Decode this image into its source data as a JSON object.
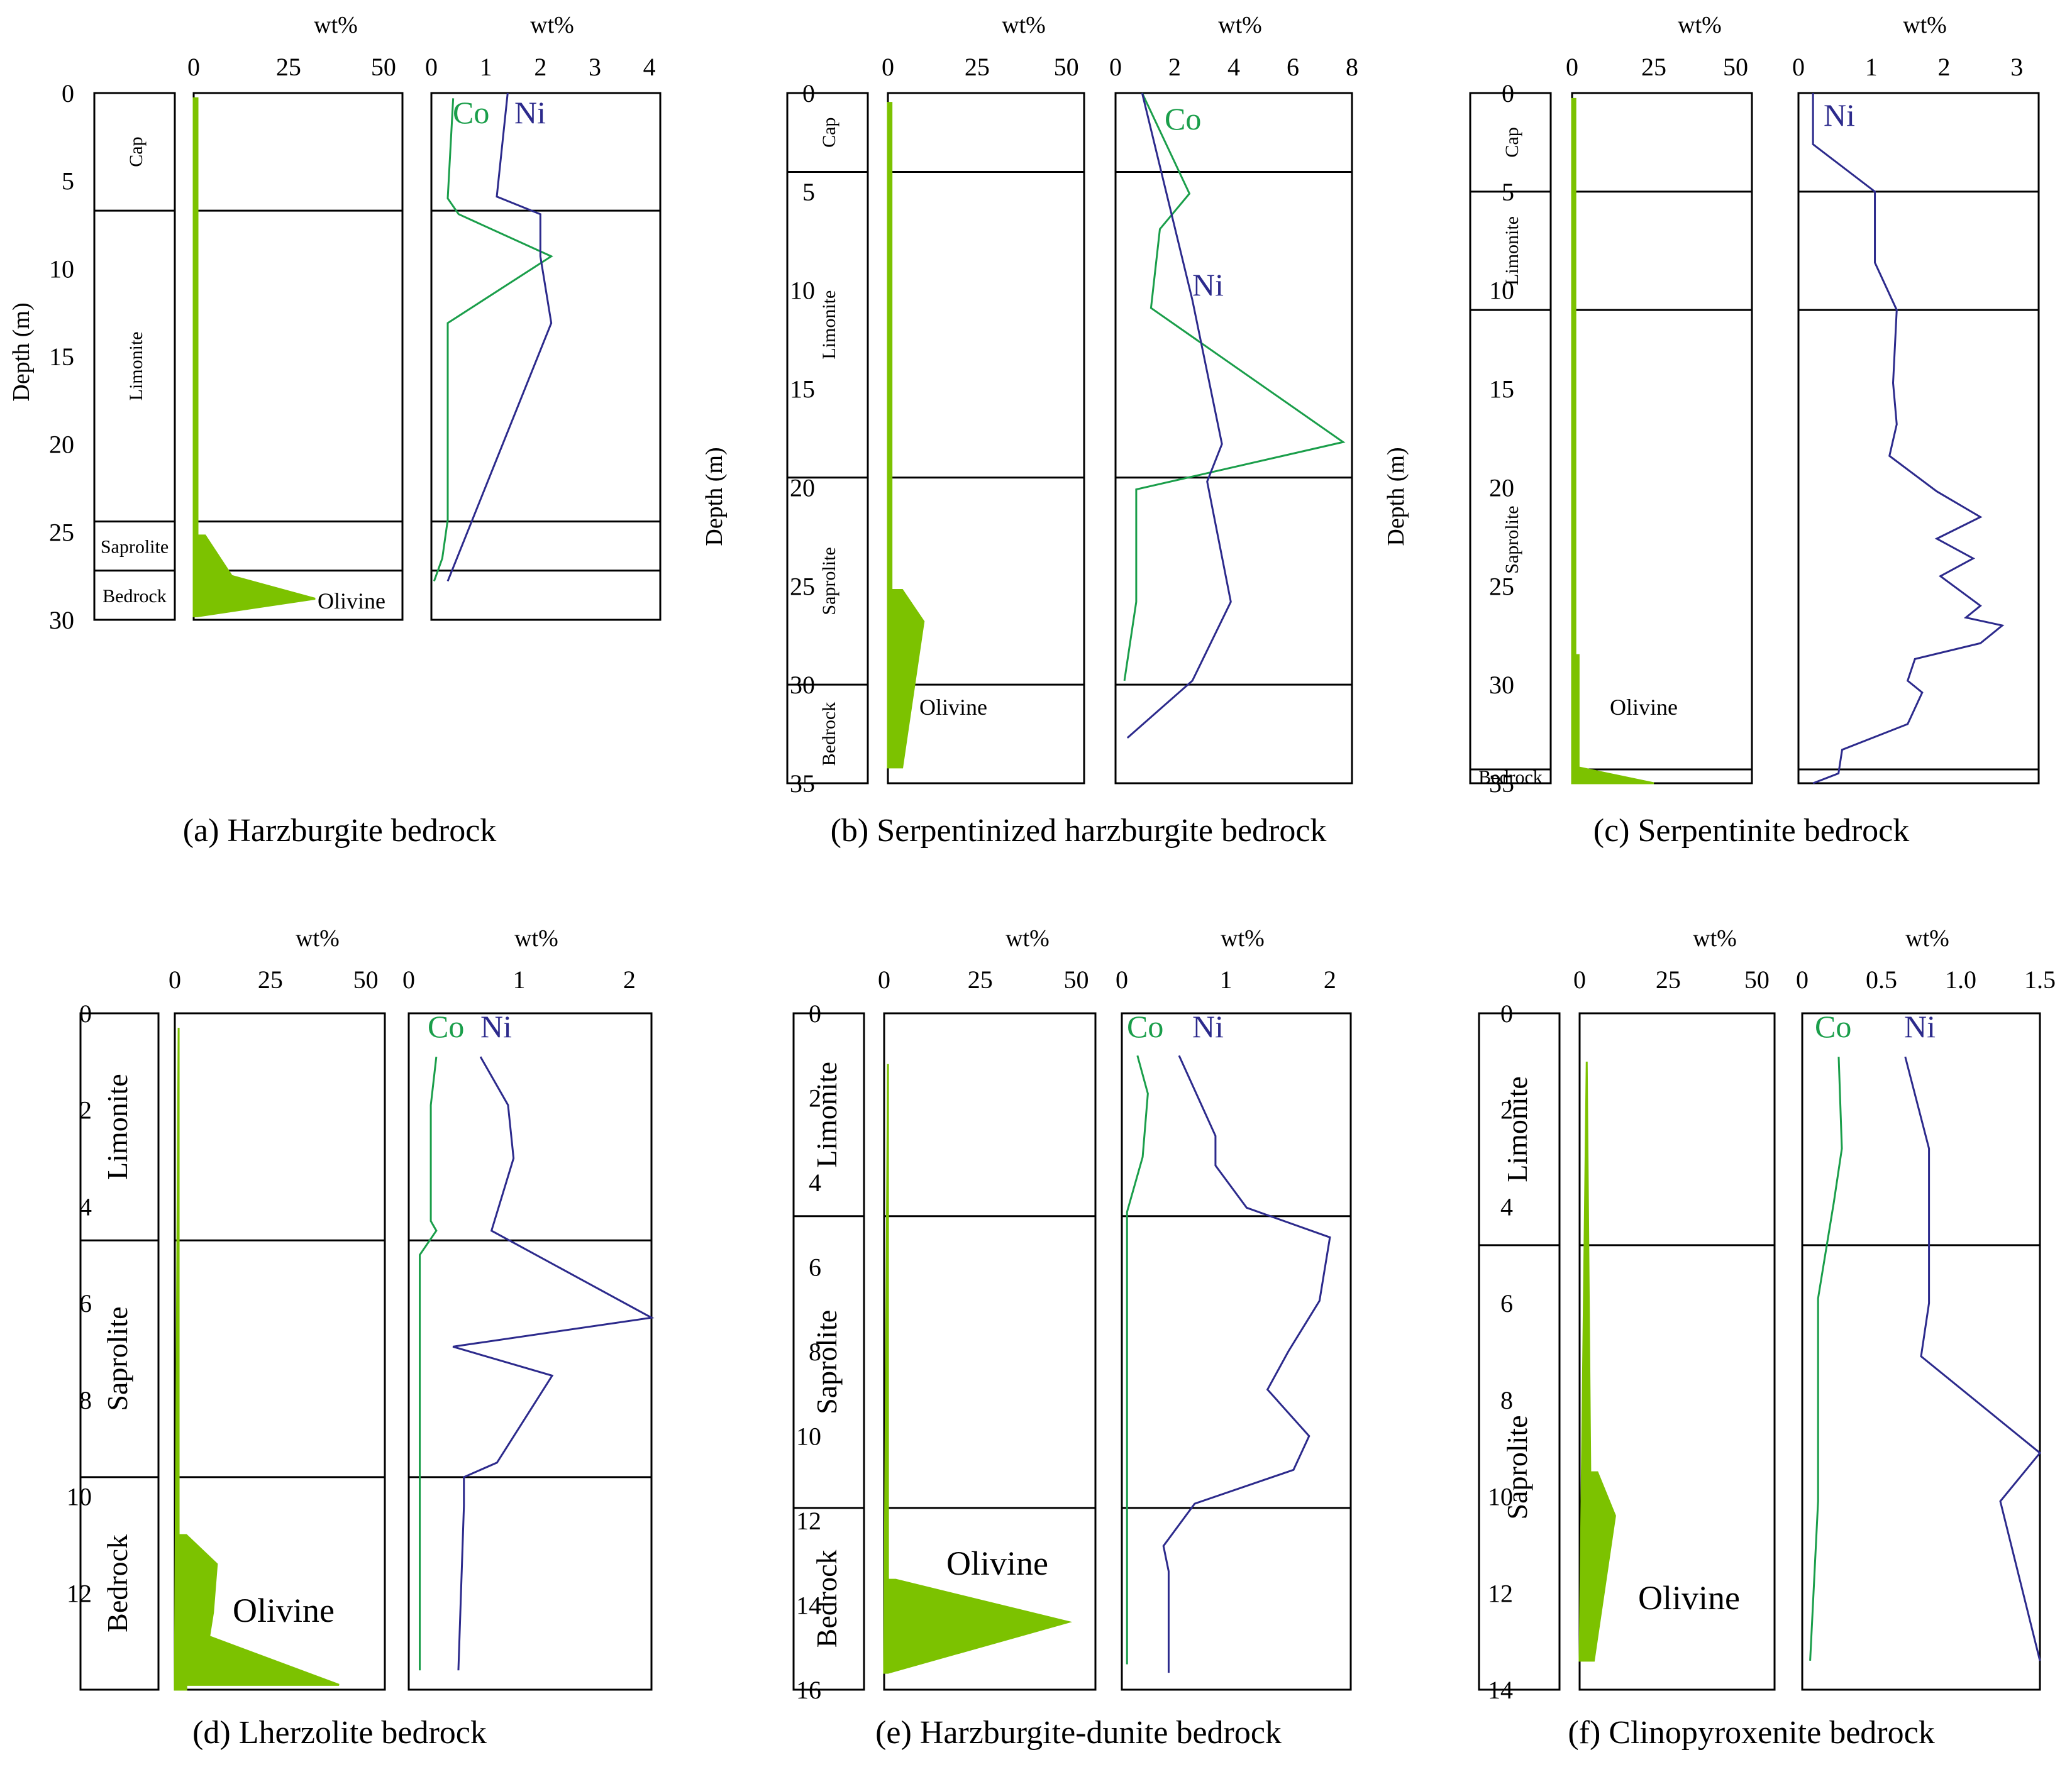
{
  "chart_data": [
    {
      "type": "line",
      "title": "(a) Harzburgite bedrock",
      "ylabel": "Depth (m)",
      "ylim": [
        0,
        30
      ],
      "depth_ticks": [
        0,
        5,
        10,
        15,
        20,
        25,
        30
      ],
      "zones": [
        {
          "name": "Cap",
          "from": 0,
          "to": 6.7
        },
        {
          "name": "Limonite",
          "from": 6.7,
          "to": 24.4
        },
        {
          "name": "Saprolite",
          "from": 24.4,
          "to": 27.2
        },
        {
          "name": "Bedrock",
          "from": 27.2,
          "to": 30.5
        }
      ],
      "olivine": {
        "xlabel": "wt%",
        "xlim": [
          0,
          55
        ],
        "x_ticks": [
          0,
          25,
          50
        ],
        "label": "Olivine",
        "color": "#7cc200",
        "points": [
          [
            0,
            0.3
          ],
          [
            1,
            0.3
          ],
          [
            1,
            25.2
          ],
          [
            3,
            25.2
          ],
          [
            10,
            27.5
          ],
          [
            32,
            28.8
          ],
          [
            1,
            29.8
          ],
          [
            0,
            29.8
          ]
        ]
      },
      "elements": {
        "xlabel": "wt%",
        "xlim": [
          0,
          4.2
        ],
        "x_ticks": [
          0,
          1,
          2,
          3,
          4
        ],
        "series": [
          {
            "name": "Co",
            "color": "#1a9e4a",
            "points": [
              [
                0.4,
                0.3
              ],
              [
                0.3,
                6
              ],
              [
                0.5,
                6.9
              ],
              [
                2.2,
                9.3
              ],
              [
                0.3,
                13.1
              ],
              [
                0.3,
                24.3
              ],
              [
                0.2,
                26.5
              ],
              [
                0.05,
                27.8
              ]
            ]
          },
          {
            "name": "Ni",
            "color": "#2c2a8c",
            "points": [
              [
                1.4,
                0
              ],
              [
                1.2,
                5.9
              ],
              [
                2.0,
                6.9
              ],
              [
                2.0,
                9.3
              ],
              [
                2.2,
                13.1
              ],
              [
                0.3,
                27.8
              ]
            ]
          }
        ]
      }
    },
    {
      "type": "line",
      "title": "(b) Serpentinized harzburgite bedrock",
      "ylabel": "Depth (m)",
      "ylim": [
        0,
        35
      ],
      "depth_ticks": [
        0,
        5,
        10,
        15,
        20,
        25,
        30,
        35
      ],
      "zones": [
        {
          "name": "Cap",
          "from": 0,
          "to": 4
        },
        {
          "name": "Limonite",
          "from": 4,
          "to": 19.5
        },
        {
          "name": "Saprolite",
          "from": 19.5,
          "to": 30
        },
        {
          "name": "Bedrock",
          "from": 30,
          "to": 35
        }
      ],
      "olivine": {
        "xlabel": "wt%",
        "xlim": [
          0,
          55
        ],
        "x_ticks": [
          0,
          25,
          50
        ],
        "label": "Olivine",
        "color": "#7cc200",
        "points": [
          [
            0,
            0.5
          ],
          [
            1,
            0.5
          ],
          [
            1,
            25.2
          ],
          [
            4,
            25.2
          ],
          [
            10,
            26.8
          ],
          [
            4,
            34.2
          ],
          [
            3,
            34.2
          ]
        ]
      },
      "elements": {
        "xlabel": "wt%",
        "xlim": [
          0,
          8
        ],
        "x_ticks": [
          0,
          2,
          4,
          6,
          8
        ],
        "series": [
          {
            "name": "Co",
            "color": "#1a9e4a",
            "points": [
              [
                0.9,
                0
              ],
              [
                2.5,
                5.1
              ],
              [
                1.5,
                6.9
              ],
              [
                1.2,
                10.9
              ],
              [
                7.7,
                17.7
              ],
              [
                0.7,
                20.1
              ],
              [
                0.7,
                25.8
              ],
              [
                0.3,
                29.8
              ]
            ]
          },
          {
            "name": "Ni",
            "color": "#2c2a8c",
            "points": [
              [
                0.9,
                0
              ],
              [
                2.6,
                10.5
              ],
              [
                3.6,
                17.8
              ],
              [
                3.1,
                19.7
              ],
              [
                3.9,
                25.8
              ],
              [
                2.6,
                29.8
              ],
              [
                0.4,
                32.7
              ]
            ]
          }
        ]
      }
    },
    {
      "type": "line",
      "title": "(c) Serpentinite bedrock",
      "ylabel": "Depth (m)",
      "ylim": [
        0,
        35
      ],
      "depth_ticks": [
        0,
        5,
        10,
        15,
        20,
        25,
        30,
        35
      ],
      "zones": [
        {
          "name": "Cap",
          "from": 0,
          "to": 5
        },
        {
          "name": "Limonite",
          "from": 5,
          "to": 11
        },
        {
          "name": "Saprolite",
          "from": 11,
          "to": 34.3
        },
        {
          "name": "Bedrock",
          "from": 34.3,
          "to": 35
        }
      ],
      "olivine": {
        "xlabel": "wt%",
        "xlim": [
          0,
          55
        ],
        "x_ticks": [
          0,
          25,
          50
        ],
        "label": "Olivine",
        "color": "#7cc200",
        "points": [
          [
            0,
            0.3
          ],
          [
            1,
            0.3
          ],
          [
            1,
            28.5
          ],
          [
            2,
            28.5
          ],
          [
            2,
            34.2
          ],
          [
            25,
            35
          ],
          [
            0,
            35
          ]
        ]
      },
      "elements": {
        "xlabel": "wt%",
        "xlim": [
          0,
          3.3
        ],
        "x_ticks": [
          0,
          1,
          2,
          3
        ],
        "series": [
          {
            "name": "Ni",
            "color": "#2c2a8c",
            "points": [
              [
                0.2,
                0
              ],
              [
                0.2,
                2.6
              ],
              [
                1.05,
                5
              ],
              [
                1.05,
                8.6
              ],
              [
                1.35,
                11
              ],
              [
                1.3,
                14.7
              ],
              [
                1.35,
                16.8
              ],
              [
                1.25,
                18.4
              ],
              [
                1.9,
                20.2
              ],
              [
                2.5,
                21.5
              ],
              [
                1.9,
                22.6
              ],
              [
                2.4,
                23.6
              ],
              [
                1.95,
                24.5
              ],
              [
                2.5,
                26
              ],
              [
                2.3,
                26.6
              ],
              [
                2.8,
                27
              ],
              [
                2.5,
                27.9
              ],
              [
                1.6,
                28.7
              ],
              [
                1.5,
                29.8
              ],
              [
                1.7,
                30.4
              ],
              [
                1.5,
                32
              ],
              [
                0.6,
                33.3
              ],
              [
                0.55,
                34.5
              ],
              [
                0.2,
                35
              ]
            ]
          }
        ]
      }
    },
    {
      "type": "line",
      "title": "(d) Lherzolite bedrock",
      "ylabel": "",
      "ylim": [
        0,
        14
      ],
      "depth_ticks": [
        0,
        2,
        4,
        6,
        8,
        10,
        12
      ],
      "zones": [
        {
          "name": "Limonite",
          "from": 0,
          "to": 4.7
        },
        {
          "name": "Saprolite",
          "from": 4.7,
          "to": 9.6
        },
        {
          "name": "Bedrock",
          "from": 9.6,
          "to": 14
        }
      ],
      "olivine": {
        "xlabel": "wt%",
        "xlim": [
          0,
          55
        ],
        "x_ticks": [
          0,
          25,
          50
        ],
        "label": "Olivine",
        "color": "#7cc200",
        "points": [
          [
            1,
            0.3
          ],
          [
            1,
            10.8
          ],
          [
            3,
            10.8
          ],
          [
            11,
            11.4
          ],
          [
            10,
            12.4
          ],
          [
            9,
            12.9
          ],
          [
            43,
            13.9
          ],
          [
            3,
            13.9
          ],
          [
            3,
            14
          ]
        ]
      },
      "elements": {
        "xlabel": "wt%",
        "xlim": [
          0,
          2.2
        ],
        "x_ticks": [
          0,
          1,
          2
        ],
        "series": [
          {
            "name": "Co",
            "color": "#1a9e4a",
            "points": [
              [
                0.25,
                0.9
              ],
              [
                0.2,
                1.9
              ],
              [
                0.2,
                4.3
              ],
              [
                0.25,
                4.5
              ],
              [
                0.1,
                5
              ],
              [
                0.1,
                13.6
              ]
            ]
          },
          {
            "name": "Ni",
            "color": "#2c2a8c",
            "points": [
              [
                0.65,
                0.9
              ],
              [
                0.9,
                1.9
              ],
              [
                0.95,
                3
              ],
              [
                0.75,
                4.5
              ],
              [
                2.2,
                6.3
              ],
              [
                0.4,
                6.9
              ],
              [
                1.3,
                7.5
              ],
              [
                0.8,
                9.3
              ],
              [
                0.5,
                9.6
              ],
              [
                0.5,
                10.2
              ],
              [
                0.45,
                13.6
              ]
            ]
          }
        ]
      }
    },
    {
      "type": "line",
      "title": "(e) Harzburgite-dunite bedrock",
      "ylabel": "",
      "ylim": [
        0,
        16
      ],
      "depth_ticks": [
        0,
        2,
        4,
        6,
        8,
        10,
        12,
        14,
        16
      ],
      "zones": [
        {
          "name": "Limonite",
          "from": 0,
          "to": 4.8
        },
        {
          "name": "Saprolite",
          "from": 4.8,
          "to": 11.7
        },
        {
          "name": "Bedrock",
          "from": 11.7,
          "to": 16
        }
      ],
      "olivine": {
        "xlabel": "wt%",
        "xlim": [
          0,
          55
        ],
        "x_ticks": [
          0,
          25,
          50
        ],
        "label": "Olivine",
        "color": "#7cc200",
        "points": [
          [
            1,
            1.2
          ],
          [
            1,
            13.4
          ],
          [
            3,
            13.4
          ],
          [
            48,
            14.4
          ],
          [
            1,
            15.6
          ]
        ]
      },
      "elements": {
        "xlabel": "wt%",
        "xlim": [
          0,
          2.2
        ],
        "x_ticks": [
          0,
          1,
          2
        ],
        "series": [
          {
            "name": "Co",
            "color": "#1a9e4a",
            "points": [
              [
                0.15,
                1
              ],
              [
                0.25,
                1.9
              ],
              [
                0.2,
                3.4
              ],
              [
                0.05,
                4.7
              ],
              [
                0.05,
                15.4
              ]
            ]
          },
          {
            "name": "Ni",
            "color": "#2c2a8c",
            "points": [
              [
                0.55,
                1
              ],
              [
                0.9,
                2.9
              ],
              [
                0.9,
                3.6
              ],
              [
                1.2,
                4.6
              ],
              [
                2.0,
                5.3
              ],
              [
                1.9,
                6.8
              ],
              [
                1.6,
                8
              ],
              [
                1.4,
                8.9
              ],
              [
                1.8,
                10
              ],
              [
                1.65,
                10.8
              ],
              [
                0.7,
                11.6
              ],
              [
                0.4,
                12.6
              ],
              [
                0.45,
                13.2
              ],
              [
                0.45,
                15.6
              ]
            ]
          }
        ]
      }
    },
    {
      "type": "line",
      "title": "(f) Clinopyroxenite bedrock",
      "ylabel": "",
      "ylim": [
        0,
        14
      ],
      "depth_ticks": [
        0,
        2,
        4,
        6,
        8,
        10,
        12,
        14
      ],
      "zones": [
        {
          "name": "Limonite",
          "from": 0,
          "to": 4.8
        },
        {
          "name": "Saprolite",
          "from": 4.8,
          "to": 14
        }
      ],
      "olivine": {
        "xlabel": "wt%",
        "xlim": [
          0,
          55
        ],
        "x_ticks": [
          0,
          25,
          50
        ],
        "label": "Olivine",
        "color": "#7cc200",
        "points": [
          [
            2,
            1
          ],
          [
            3,
            9.5
          ],
          [
            5,
            9.5
          ],
          [
            10,
            10.4
          ],
          [
            4,
            13.4
          ]
        ]
      },
      "elements": {
        "xlabel": "wt%",
        "xlim": [
          0,
          1.5
        ],
        "x_ticks": [
          "0",
          "0.5",
          "1.0",
          "1.5"
        ],
        "x_tick_values": [
          0,
          0.5,
          1.0,
          1.5
        ],
        "series": [
          {
            "name": "Co",
            "color": "#1a9e4a",
            "points": [
              [
                0.23,
                0.9
              ],
              [
                0.25,
                2.8
              ],
              [
                0.2,
                3.9
              ],
              [
                0.1,
                5.9
              ],
              [
                0.1,
                10.1
              ],
              [
                0.05,
                13.4
              ]
            ]
          },
          {
            "name": "Ni",
            "color": "#2c2a8c",
            "points": [
              [
                0.65,
                0.9
              ],
              [
                0.8,
                2.8
              ],
              [
                0.8,
                6
              ],
              [
                0.75,
                7.1
              ],
              [
                1.5,
                9.1
              ],
              [
                1.25,
                10.1
              ],
              [
                1.5,
                13.4
              ]
            ]
          }
        ]
      }
    }
  ]
}
